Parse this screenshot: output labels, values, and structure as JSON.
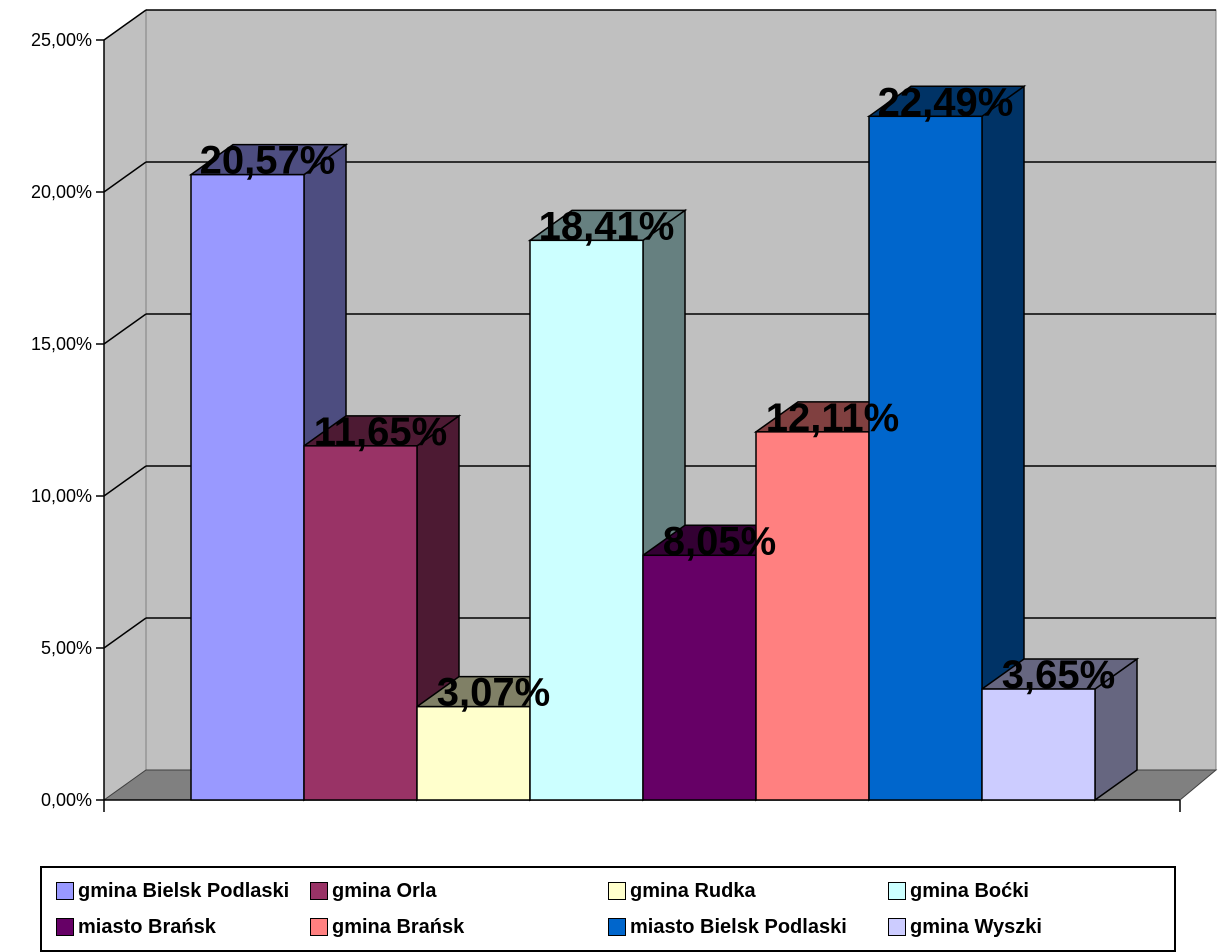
{
  "chart_data": {
    "type": "bar",
    "categories": [
      "gmina Bielsk Podlaski",
      "gmina Orla",
      "gmina Rudka",
      "gmina Boćki",
      "miasto Brańsk",
      "gmina Brańsk",
      "miasto Bielsk Podlaski",
      "gmina Wyszki"
    ],
    "values": [
      20.57,
      11.65,
      3.07,
      18.41,
      8.05,
      12.11,
      22.49,
      3.65
    ],
    "value_labels": [
      "20,57%",
      "11,65%",
      "3,07%",
      "18,41%",
      "8,05%",
      "12,11%",
      "22,49%",
      "3,65%"
    ],
    "colors": [
      "#9999FF",
      "#993366",
      "#FFFFCC",
      "#CCFFFF",
      "#660066",
      "#FF8080",
      "#0066CC",
      "#CCCCFF"
    ],
    "side_colors": [
      "#4D4D80",
      "#4D1A33",
      "#808066",
      "#668080",
      "#330033",
      "#804040",
      "#003366",
      "#666680"
    ],
    "ylim": [
      0,
      25
    ],
    "yticks": [
      0,
      5,
      10,
      15,
      20,
      25
    ],
    "ytick_labels": [
      "0,00%",
      "5,00%",
      "10,00%",
      "15,00%",
      "20,00%",
      "25,00%"
    ],
    "grid": true,
    "style": "3d-column",
    "wall_color": "#C0C0C0",
    "floor_color": "#808080",
    "legend_position": "bottom"
  }
}
